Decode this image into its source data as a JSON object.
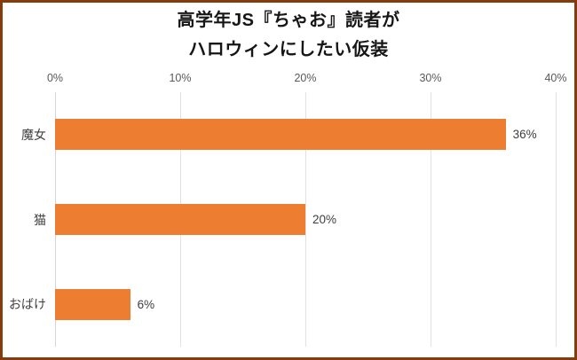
{
  "frame": {
    "border_color": "#843C0C",
    "background_color": "#FFFFFF"
  },
  "title": {
    "line1": "高学年JS『ちゃお』読者が",
    "line2": "ハロウィンにしたい仮装"
  },
  "chart_data": {
    "type": "bar",
    "orientation": "horizontal",
    "title": "高学年JS『ちゃお』読者が ハロウィンにしたい仮装",
    "categories": [
      "魔女",
      "猫",
      "おばけ"
    ],
    "values": [
      36,
      20,
      6
    ],
    "value_labels": [
      "36%",
      "20%",
      "6%"
    ],
    "x_axis": {
      "position": "top",
      "range": [
        0,
        40
      ],
      "tick_values": [
        0,
        10,
        20,
        30,
        40
      ],
      "tick_labels": [
        "0%",
        "10%",
        "20%",
        "30%",
        "40%"
      ]
    },
    "bar_color": "#ED7D31",
    "grid": true,
    "legend": false,
    "colors": {
      "title": "#161616",
      "tick_label": "#595959",
      "category_label": "#404040",
      "value_label": "#3D3D3D",
      "gridline": "#E2E2E2",
      "axis_line": "#D6D6D6"
    }
  }
}
